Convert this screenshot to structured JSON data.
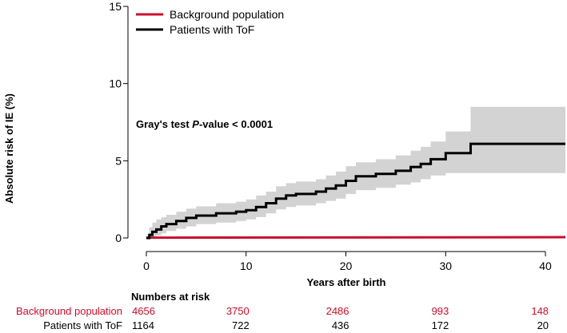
{
  "chart_data": {
    "type": "line",
    "subtype": "cumulative-incidence-step",
    "xlabel": "Years after birth",
    "ylabel": "Absolute risk of IE (%)",
    "xlim": [
      0,
      42
    ],
    "ylim": [
      0,
      15
    ],
    "xticks": [
      0,
      10,
      20,
      30,
      40
    ],
    "yticks": [
      0,
      5,
      10,
      15
    ],
    "grid": false,
    "legend_position": "top-left",
    "annotation": {
      "prefix": "Gray's test ",
      "italic": "P",
      "suffix": "-value < 0.0001"
    },
    "series": [
      {
        "name": "Background population",
        "color": "#c8102e",
        "x": [
          0,
          42
        ],
        "y": [
          0.02,
          0.05
        ]
      },
      {
        "name": "Patients with ToF",
        "color": "#000000",
        "x": [
          0,
          0.3,
          0.6,
          1.0,
          1.5,
          2.0,
          3.0,
          4.0,
          5.0,
          7.0,
          9.0,
          10.0,
          11.0,
          12.0,
          13.0,
          14.0,
          15.0,
          17.0,
          18.0,
          19.0,
          20.0,
          21.0,
          23.0,
          25.0,
          26.5,
          27.5,
          28.5,
          30.0,
          32.5,
          42.0
        ],
        "y": [
          0,
          0.2,
          0.4,
          0.55,
          0.75,
          0.9,
          1.1,
          1.3,
          1.45,
          1.6,
          1.7,
          1.8,
          2.0,
          2.25,
          2.55,
          2.75,
          2.85,
          3.0,
          3.2,
          3.4,
          3.7,
          4.0,
          4.15,
          4.35,
          4.6,
          4.8,
          5.1,
          5.5,
          6.1,
          6.1
        ],
        "ci_lower": [
          0,
          0,
          0.05,
          0.15,
          0.3,
          0.45,
          0.6,
          0.75,
          0.9,
          1.0,
          1.1,
          1.2,
          1.35,
          1.6,
          1.85,
          2.0,
          2.1,
          2.25,
          2.4,
          2.55,
          2.85,
          3.1,
          3.25,
          3.45,
          3.6,
          3.8,
          4.05,
          4.2,
          4.2,
          4.2
        ],
        "ci_upper": [
          0,
          0.7,
          1.0,
          1.2,
          1.35,
          1.5,
          1.7,
          1.9,
          2.05,
          2.25,
          2.35,
          2.5,
          2.75,
          3.0,
          3.35,
          3.55,
          3.65,
          3.8,
          4.05,
          4.3,
          4.65,
          4.9,
          5.1,
          5.35,
          5.65,
          5.9,
          6.25,
          6.9,
          8.5,
          8.5
        ],
        "ci_color": "#d3d3d3"
      }
    ],
    "numbers_at_risk": {
      "title": "Numbers at risk",
      "years": [
        0,
        10,
        20,
        30,
        40
      ],
      "rows": [
        {
          "label": "Background population",
          "color": "#c8102e",
          "values": [
            "4656",
            "3750",
            "2486",
            "993",
            "148"
          ]
        },
        {
          "label": "Patients with ToF",
          "color": "#000000",
          "values": [
            "1164",
            "722",
            "436",
            "172",
            "20"
          ]
        }
      ]
    }
  }
}
